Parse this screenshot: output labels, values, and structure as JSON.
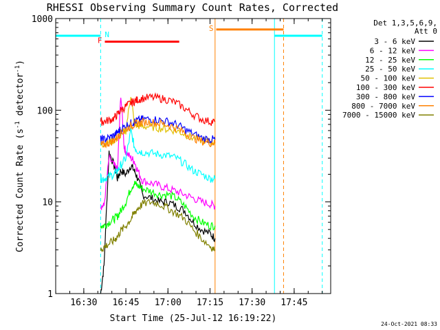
{
  "chart_data": {
    "type": "line",
    "title": "RHESSI Observing Summary Count Rates, Corrected",
    "xlabel": "Start Time (25-Jul-12 16:19:22)",
    "ylabel_main": "Corrected Count Rate (s",
    "ylabel_sup1": "-1",
    "ylabel_mid": " detector",
    "ylabel_sup2": "-1",
    "ylabel_end": ")",
    "yscale": "log",
    "ylim": [
      1,
      1000
    ],
    "xlim_minutes": [
      16.333,
      17.967
    ],
    "x_ticks": [
      {
        "m": 16.5,
        "label": "16:30"
      },
      {
        "m": 16.75,
        "label": "16:45"
      },
      {
        "m": 17.0,
        "label": "17:00"
      },
      {
        "m": 17.25,
        "label": "17:15"
      },
      {
        "m": 17.5,
        "label": "17:30"
      },
      {
        "m": 17.75,
        "label": "17:45"
      }
    ],
    "y_ticks": [
      {
        "v": 1,
        "label": "1"
      },
      {
        "v": 10,
        "label": "10"
      },
      {
        "v": 100,
        "label": "100"
      },
      {
        "v": 1000,
        "label": "1000"
      }
    ],
    "legend_header": [
      "Det 1,3,5,6,9,",
      "Att 0"
    ],
    "legend_position": "right",
    "series": [
      {
        "name": "3 - 6 keV",
        "color": "#000000",
        "points": [
          [
            16.6,
            1
          ],
          [
            16.62,
            2
          ],
          [
            16.65,
            35
          ],
          [
            16.68,
            25
          ],
          [
            16.7,
            18
          ],
          [
            16.72,
            22
          ],
          [
            16.75,
            20
          ],
          [
            16.78,
            25
          ],
          [
            16.8,
            22
          ],
          [
            16.82,
            18
          ],
          [
            16.85,
            12
          ],
          [
            16.9,
            11
          ],
          [
            16.95,
            10
          ],
          [
            17.0,
            10
          ],
          [
            17.05,
            9
          ],
          [
            17.1,
            8
          ],
          [
            17.15,
            6
          ],
          [
            17.2,
            5
          ],
          [
            17.25,
            4.5
          ],
          [
            17.28,
            4
          ]
        ]
      },
      {
        "name": "6 - 12 keV",
        "color": "#ff00ff",
        "points": [
          [
            16.6,
            9
          ],
          [
            16.62,
            9
          ],
          [
            16.65,
            30
          ],
          [
            16.68,
            25
          ],
          [
            16.7,
            22
          ],
          [
            16.72,
            150
          ],
          [
            16.74,
            40
          ],
          [
            16.75,
            35
          ],
          [
            16.78,
            30
          ],
          [
            16.8,
            28
          ],
          [
            16.82,
            22
          ],
          [
            16.85,
            17
          ],
          [
            16.9,
            16
          ],
          [
            16.95,
            15
          ],
          [
            17.0,
            14
          ],
          [
            17.05,
            13
          ],
          [
            17.1,
            12
          ],
          [
            17.15,
            11
          ],
          [
            17.2,
            10
          ],
          [
            17.25,
            9.5
          ],
          [
            17.28,
            9
          ]
        ]
      },
      {
        "name": "12 - 25 keV",
        "color": "#00ff00",
        "points": [
          [
            16.6,
            5.5
          ],
          [
            16.62,
            5.5
          ],
          [
            16.65,
            6
          ],
          [
            16.68,
            6.5
          ],
          [
            16.7,
            7
          ],
          [
            16.72,
            8
          ],
          [
            16.75,
            10
          ],
          [
            16.78,
            14
          ],
          [
            16.8,
            16
          ],
          [
            16.82,
            15
          ],
          [
            16.85,
            14
          ],
          [
            16.9,
            13
          ],
          [
            16.95,
            12
          ],
          [
            17.0,
            12
          ],
          [
            17.05,
            11
          ],
          [
            17.1,
            9
          ],
          [
            17.15,
            7
          ],
          [
            17.2,
            6
          ],
          [
            17.25,
            5.5
          ],
          [
            17.28,
            5.5
          ]
        ]
      },
      {
        "name": "25 - 50 keV",
        "color": "#00ffff",
        "points": [
          [
            16.6,
            18
          ],
          [
            16.62,
            18
          ],
          [
            16.65,
            19
          ],
          [
            16.68,
            20
          ],
          [
            16.7,
            22
          ],
          [
            16.72,
            25
          ],
          [
            16.75,
            30
          ],
          [
            16.78,
            60
          ],
          [
            16.8,
            40
          ],
          [
            16.82,
            36
          ],
          [
            16.85,
            35
          ],
          [
            16.9,
            34
          ],
          [
            16.95,
            33
          ],
          [
            17.0,
            32
          ],
          [
            17.05,
            30
          ],
          [
            17.1,
            26
          ],
          [
            17.15,
            22
          ],
          [
            17.2,
            20
          ],
          [
            17.25,
            18
          ],
          [
            17.28,
            18
          ]
        ]
      },
      {
        "name": "50 - 100 keV",
        "color": "#e0c000",
        "points": [
          [
            16.6,
            43
          ],
          [
            16.62,
            43
          ],
          [
            16.65,
            45
          ],
          [
            16.68,
            47
          ],
          [
            16.7,
            50
          ],
          [
            16.72,
            55
          ],
          [
            16.75,
            60
          ],
          [
            16.78,
            150
          ],
          [
            16.8,
            70
          ],
          [
            16.82,
            68
          ],
          [
            16.85,
            67
          ],
          [
            16.9,
            66
          ],
          [
            16.95,
            64
          ],
          [
            17.0,
            62
          ],
          [
            17.05,
            60
          ],
          [
            17.1,
            55
          ],
          [
            17.15,
            50
          ],
          [
            17.2,
            47
          ],
          [
            17.25,
            45
          ],
          [
            17.28,
            45
          ]
        ]
      },
      {
        "name": "100 - 300 keV",
        "color": "#ff0000",
        "points": [
          [
            16.6,
            75
          ],
          [
            16.62,
            75
          ],
          [
            16.65,
            78
          ],
          [
            16.68,
            82
          ],
          [
            16.7,
            90
          ],
          [
            16.72,
            100
          ],
          [
            16.75,
            110
          ],
          [
            16.78,
            120
          ],
          [
            16.8,
            125
          ],
          [
            16.82,
            130
          ],
          [
            16.85,
            135
          ],
          [
            16.9,
            138
          ],
          [
            16.95,
            135
          ],
          [
            17.0,
            130
          ],
          [
            17.05,
            120
          ],
          [
            17.1,
            105
          ],
          [
            17.15,
            90
          ],
          [
            17.2,
            80
          ],
          [
            17.25,
            75
          ],
          [
            17.28,
            75
          ]
        ]
      },
      {
        "name": "300 - 800 keV",
        "color": "#0000ff",
        "points": [
          [
            16.6,
            48
          ],
          [
            16.62,
            48
          ],
          [
            16.65,
            50
          ],
          [
            16.68,
            53
          ],
          [
            16.7,
            57
          ],
          [
            16.72,
            62
          ],
          [
            16.75,
            68
          ],
          [
            16.78,
            72
          ],
          [
            16.8,
            75
          ],
          [
            16.82,
            77
          ],
          [
            16.85,
            80
          ],
          [
            16.9,
            80
          ],
          [
            16.95,
            78
          ],
          [
            17.0,
            75
          ],
          [
            17.05,
            70
          ],
          [
            17.1,
            62
          ],
          [
            17.15,
            55
          ],
          [
            17.2,
            50
          ],
          [
            17.25,
            48
          ],
          [
            17.28,
            48
          ]
        ]
      },
      {
        "name": "800 - 7000 keV",
        "color": "#ff8000",
        "points": [
          [
            16.6,
            42
          ],
          [
            16.62,
            42
          ],
          [
            16.65,
            44
          ],
          [
            16.68,
            47
          ],
          [
            16.7,
            51
          ],
          [
            16.72,
            56
          ],
          [
            16.75,
            62
          ],
          [
            16.78,
            67
          ],
          [
            16.8,
            70
          ],
          [
            16.82,
            72
          ],
          [
            16.85,
            74
          ],
          [
            16.9,
            74
          ],
          [
            16.95,
            72
          ],
          [
            17.0,
            69
          ],
          [
            17.05,
            64
          ],
          [
            17.1,
            57
          ],
          [
            17.15,
            50
          ],
          [
            17.2,
            46
          ],
          [
            17.25,
            44
          ],
          [
            17.28,
            44
          ]
        ]
      },
      {
        "name": "7000 - 15000 keV",
        "color": "#808000",
        "points": [
          [
            16.6,
            3
          ],
          [
            16.62,
            3.2
          ],
          [
            16.65,
            3.5
          ],
          [
            16.68,
            3.8
          ],
          [
            16.7,
            4.2
          ],
          [
            16.72,
            4.8
          ],
          [
            16.75,
            5.5
          ],
          [
            16.78,
            6.5
          ],
          [
            16.8,
            7.5
          ],
          [
            16.82,
            8.5
          ],
          [
            16.85,
            9.5
          ],
          [
            16.9,
            10
          ],
          [
            16.95,
            9.5
          ],
          [
            17.0,
            8.5
          ],
          [
            17.05,
            7.5
          ],
          [
            17.1,
            6.5
          ],
          [
            17.15,
            5
          ],
          [
            17.2,
            4
          ],
          [
            17.25,
            3.3
          ],
          [
            17.28,
            3
          ]
        ]
      }
    ],
    "flags": [
      {
        "label": "N",
        "color": "#00ffff",
        "value": 650,
        "segments": [
          [
            16.333,
            16.6
          ],
          [
            17.633,
            17.917
          ]
        ]
      },
      {
        "label": "F",
        "color": "#ff0000",
        "value": 560,
        "segments": [
          [
            16.625,
            17.067
          ]
        ]
      },
      {
        "label": "S",
        "color": "#ff8000",
        "value": 760,
        "segments": [
          [
            17.287,
            17.687
          ]
        ]
      }
    ],
    "vlines": [
      {
        "m": 16.333,
        "color": "#00ffff",
        "style": "solid"
      },
      {
        "m": 16.6,
        "color": "#00ffff",
        "style": "dashed"
      },
      {
        "m": 17.28,
        "color": "#ff8000",
        "style": "solid"
      },
      {
        "m": 17.633,
        "color": "#00ffff",
        "style": "solid"
      },
      {
        "m": 17.687,
        "color": "#ff8000",
        "style": "dashed"
      },
      {
        "m": 17.917,
        "color": "#00ffff",
        "style": "dashed"
      }
    ],
    "timestamp": "24-Oct-2021 08:33"
  }
}
